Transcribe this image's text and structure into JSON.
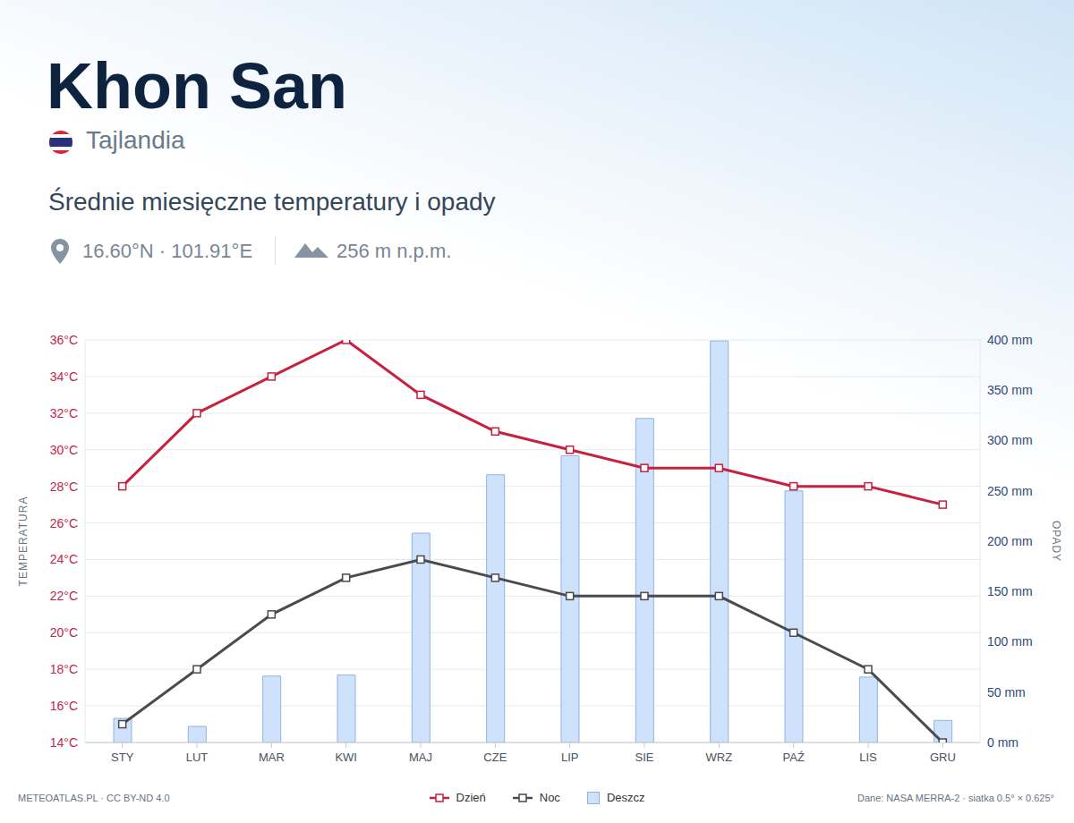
{
  "chart_data": {
    "type": "line",
    "title": "Khon San",
    "subtitle": "Średnie miesięczne temperatury i opady",
    "annotations": {
      "country": "Tajlandia",
      "coordinates": "16.60°N · 101.91°E",
      "elevation": "256 m n.p.m.",
      "credit": "METEOATLAS.PL · CC BY-ND 4.0",
      "source": "Dane: NASA MERRA-2 · siatka 0.5° × 0.625°"
    },
    "ylabel": "TEMPERATURA",
    "y2label": "OPADY",
    "categories": [
      "STY",
      "LUT",
      "MAR",
      "KWI",
      "MAJ",
      "CZE",
      "LIP",
      "SIE",
      "WRZ",
      "PAŹ",
      "LIS",
      "GRU"
    ],
    "series": [
      {
        "name": "Dzień",
        "type": "line",
        "color": "#c8203f",
        "marker": "square",
        "values": [
          28,
          32,
          34,
          36,
          33,
          31,
          30,
          29,
          29,
          28,
          28,
          27
        ]
      },
      {
        "name": "Noc",
        "type": "line",
        "color": "#4a4a4f",
        "marker": "square",
        "values": [
          15,
          18,
          21,
          23,
          24,
          23,
          22,
          22,
          22,
          20,
          18,
          14
        ]
      },
      {
        "name": "Deszcz",
        "type": "bar",
        "axis": "y2",
        "color": "#cfe2fb",
        "values": [
          24,
          16,
          66,
          67,
          208,
          266,
          285,
          322,
          399,
          250,
          65,
          22
        ]
      }
    ],
    "ylim": [
      14,
      36
    ],
    "yticks": [
      {
        "value": 14,
        "label": "14°C"
      },
      {
        "value": 16,
        "label": "16°C"
      },
      {
        "value": 18,
        "label": "18°C"
      },
      {
        "value": 20,
        "label": "20°C"
      },
      {
        "value": 22,
        "label": "22°C"
      },
      {
        "value": 24,
        "label": "24°C"
      },
      {
        "value": 26,
        "label": "26°C"
      },
      {
        "value": 28,
        "label": "28°C"
      },
      {
        "value": 30,
        "label": "30°C"
      },
      {
        "value": 32,
        "label": "32°C"
      },
      {
        "value": 34,
        "label": "34°C"
      },
      {
        "value": 36,
        "label": "36°C"
      }
    ],
    "y2lim": [
      0,
      400
    ],
    "y2ticks": [
      {
        "value": 0,
        "label": "0 mm"
      },
      {
        "value": 50,
        "label": "50 mm"
      },
      {
        "value": 100,
        "label": "100 mm"
      },
      {
        "value": 150,
        "label": "150 mm"
      },
      {
        "value": 200,
        "label": "200 mm"
      },
      {
        "value": 250,
        "label": "250 mm"
      },
      {
        "value": 300,
        "label": "300 mm"
      },
      {
        "value": 350,
        "label": "350 mm"
      },
      {
        "value": 400,
        "label": "400 mm"
      }
    ],
    "grid": true,
    "legend": "bottom"
  }
}
